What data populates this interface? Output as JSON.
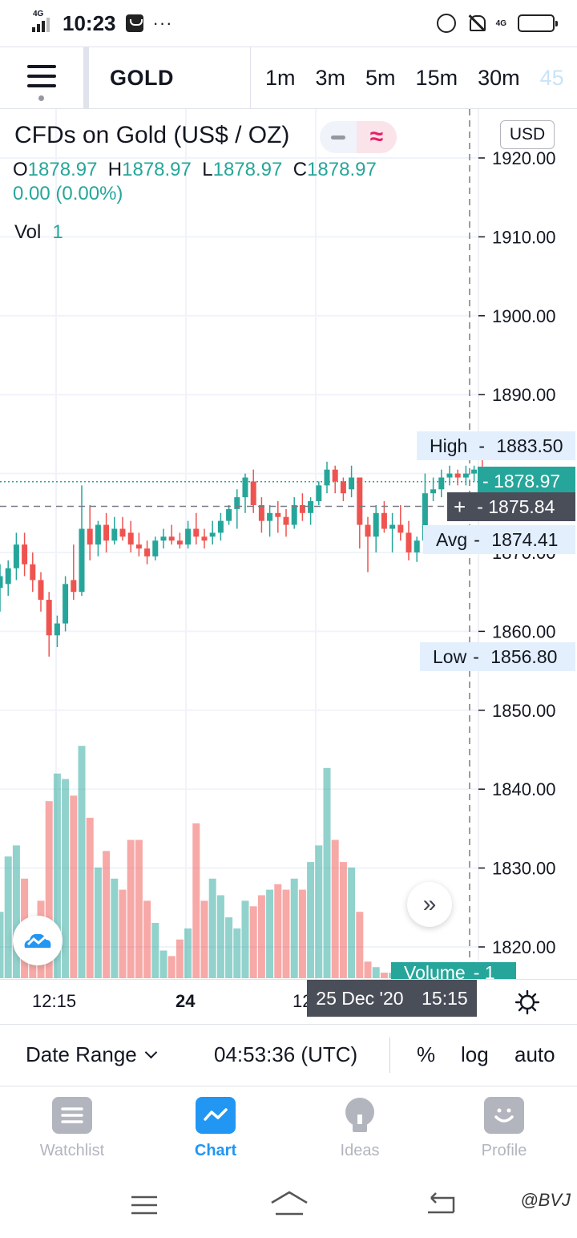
{
  "status_bar": {
    "time": "10:23",
    "network_left": "4G",
    "network_right": "4G",
    "more": "···"
  },
  "toolbar": {
    "symbol": "GOLD",
    "intervals": [
      {
        "label": "1m"
      },
      {
        "label": "3m"
      },
      {
        "label": "5m"
      },
      {
        "label": "15m"
      },
      {
        "label": "30m"
      },
      {
        "label": "45"
      }
    ]
  },
  "legend": {
    "title": "CFDs on Gold (US$ / OZ)",
    "open_key": "O",
    "open": "1878.97",
    "high_key": "H",
    "high": "1878.97",
    "low_key": "L",
    "low": "1878.97",
    "close_key": "C",
    "close": "1878.97",
    "change": "0.00 (0.00%)",
    "vol_label": "Vol",
    "vol_value": "1"
  },
  "currency": "USD",
  "price_axis": [
    "1920.00",
    "1910.00",
    "1900.00",
    "1890.00",
    "1870.00",
    "1860.00",
    "1850.00",
    "1840.00",
    "1830.00",
    "1820.00"
  ],
  "price_labels": {
    "high_label": "High",
    "high_value": "1883.50",
    "last_value": "1878.97",
    "crosshair_value": "1875.84",
    "avg_label": "Avg",
    "avg_value": "1874.41",
    "low_label": "Low",
    "low_value": "1856.80",
    "volume_label": "Volume",
    "volume_value": "1"
  },
  "time_axis": {
    "label_1": "12:15",
    "label_2": "24",
    "label_3": "12",
    "crosshair_date": "25 Dec '20",
    "crosshair_time": "15:15"
  },
  "controls": {
    "date_range": "Date Range",
    "clock": "04:53:36 (UTC)",
    "percent": "%",
    "log": "log",
    "auto": "auto"
  },
  "tabs": [
    {
      "label": "Watchlist"
    },
    {
      "label": "Chart"
    },
    {
      "label": "Ideas"
    },
    {
      "label": "Profile"
    }
  ],
  "watermark": "@BVJ",
  "colors": {
    "up": "#26a69a",
    "down": "#ef5350",
    "accent": "#2196f3",
    "badge_light": "#e3effd",
    "crosshair_badge": "#4a4e59"
  },
  "chart_data": {
    "type": "candlestick",
    "title": "CFDs on Gold (US$ / OZ)",
    "y_axis_range": [
      1816,
      1926
    ],
    "candles": [
      {
        "o": 1865.5,
        "h": 1868.5,
        "l": 1862.5,
        "c": 1867.0
      },
      {
        "o": 1866.0,
        "h": 1869.0,
        "l": 1864.5,
        "c": 1868.0
      },
      {
        "o": 1868.0,
        "h": 1872.5,
        "l": 1866.5,
        "c": 1871.0
      },
      {
        "o": 1871.0,
        "h": 1872.5,
        "l": 1867.0,
        "c": 1868.5
      },
      {
        "o": 1868.5,
        "h": 1870.0,
        "l": 1865.0,
        "c": 1866.5
      },
      {
        "o": 1866.5,
        "h": 1867.5,
        "l": 1862.5,
        "c": 1864.0
      },
      {
        "o": 1864.0,
        "h": 1865.0,
        "l": 1856.8,
        "c": 1859.5
      },
      {
        "o": 1859.5,
        "h": 1862.0,
        "l": 1858.0,
        "c": 1861.0
      },
      {
        "o": 1861.0,
        "h": 1867.0,
        "l": 1860.0,
        "c": 1866.0
      },
      {
        "o": 1866.5,
        "h": 1871.0,
        "l": 1864.0,
        "c": 1865.0
      },
      {
        "o": 1865.0,
        "h": 1878.5,
        "l": 1864.5,
        "c": 1873.0
      },
      {
        "o": 1873.0,
        "h": 1876.0,
        "l": 1869.0,
        "c": 1871.0
      },
      {
        "o": 1871.0,
        "h": 1874.0,
        "l": 1869.5,
        "c": 1873.5
      },
      {
        "o": 1873.5,
        "h": 1875.0,
        "l": 1870.0,
        "c": 1871.5
      },
      {
        "o": 1871.5,
        "h": 1874.5,
        "l": 1871.0,
        "c": 1873.0
      },
      {
        "o": 1873.0,
        "h": 1874.5,
        "l": 1871.5,
        "c": 1872.0
      },
      {
        "o": 1872.5,
        "h": 1874.0,
        "l": 1870.0,
        "c": 1871.0
      },
      {
        "o": 1871.0,
        "h": 1872.5,
        "l": 1869.5,
        "c": 1870.5
      },
      {
        "o": 1870.5,
        "h": 1871.5,
        "l": 1868.5,
        "c": 1869.5
      },
      {
        "o": 1869.5,
        "h": 1872.0,
        "l": 1869.0,
        "c": 1871.5
      },
      {
        "o": 1871.5,
        "h": 1873.0,
        "l": 1870.5,
        "c": 1872.0
      },
      {
        "o": 1872.0,
        "h": 1873.5,
        "l": 1871.0,
        "c": 1871.5
      },
      {
        "o": 1871.5,
        "h": 1872.5,
        "l": 1870.5,
        "c": 1871.0
      },
      {
        "o": 1871.0,
        "h": 1874.0,
        "l": 1870.5,
        "c": 1873.0
      },
      {
        "o": 1873.0,
        "h": 1875.0,
        "l": 1871.0,
        "c": 1872.0
      },
      {
        "o": 1872.0,
        "h": 1873.0,
        "l": 1870.5,
        "c": 1871.5
      },
      {
        "o": 1872.0,
        "h": 1874.0,
        "l": 1871.0,
        "c": 1872.5
      },
      {
        "o": 1872.5,
        "h": 1875.0,
        "l": 1871.5,
        "c": 1874.0
      },
      {
        "o": 1874.0,
        "h": 1876.0,
        "l": 1873.5,
        "c": 1875.5
      },
      {
        "o": 1875.5,
        "h": 1878.0,
        "l": 1873.0,
        "c": 1877.0
      },
      {
        "o": 1877.0,
        "h": 1880.0,
        "l": 1875.0,
        "c": 1879.5
      },
      {
        "o": 1879.0,
        "h": 1880.5,
        "l": 1875.0,
        "c": 1876.0
      },
      {
        "o": 1876.0,
        "h": 1877.0,
        "l": 1872.5,
        "c": 1874.0
      },
      {
        "o": 1874.0,
        "h": 1876.0,
        "l": 1872.0,
        "c": 1875.0
      },
      {
        "o": 1875.0,
        "h": 1876.5,
        "l": 1872.5,
        "c": 1874.5
      },
      {
        "o": 1874.5,
        "h": 1875.5,
        "l": 1872.0,
        "c": 1873.5
      },
      {
        "o": 1873.5,
        "h": 1877.0,
        "l": 1873.0,
        "c": 1876.0
      },
      {
        "o": 1876.0,
        "h": 1877.5,
        "l": 1874.0,
        "c": 1875.0
      },
      {
        "o": 1875.0,
        "h": 1877.0,
        "l": 1873.5,
        "c": 1876.5
      },
      {
        "o": 1876.5,
        "h": 1879.0,
        "l": 1876.0,
        "c": 1878.5
      },
      {
        "o": 1878.5,
        "h": 1881.5,
        "l": 1877.5,
        "c": 1880.5
      },
      {
        "o": 1880.5,
        "h": 1881.0,
        "l": 1877.5,
        "c": 1879.0
      },
      {
        "o": 1879.0,
        "h": 1879.5,
        "l": 1876.5,
        "c": 1877.5
      },
      {
        "o": 1878.0,
        "h": 1881.0,
        "l": 1877.0,
        "c": 1879.5
      },
      {
        "o": 1879.5,
        "h": 1879.5,
        "l": 1870.5,
        "c": 1873.5
      },
      {
        "o": 1873.5,
        "h": 1874.5,
        "l": 1867.5,
        "c": 1872.0
      },
      {
        "o": 1872.0,
        "h": 1876.0,
        "l": 1870.0,
        "c": 1875.0
      },
      {
        "o": 1875.0,
        "h": 1876.5,
        "l": 1872.5,
        "c": 1873.0
      },
      {
        "o": 1873.0,
        "h": 1875.0,
        "l": 1870.0,
        "c": 1873.5
      },
      {
        "o": 1873.5,
        "h": 1876.0,
        "l": 1871.5,
        "c": 1872.5
      },
      {
        "o": 1872.5,
        "h": 1874.0,
        "l": 1869.0,
        "c": 1870.0
      },
      {
        "o": 1870.0,
        "h": 1872.0,
        "l": 1868.8,
        "c": 1871.5
      },
      {
        "o": 1871.5,
        "h": 1880.0,
        "l": 1870.5,
        "c": 1877.5
      },
      {
        "o": 1877.5,
        "h": 1879.5,
        "l": 1876.5,
        "c": 1878.0
      },
      {
        "o": 1878.0,
        "h": 1880.5,
        "l": 1877.0,
        "c": 1879.5
      },
      {
        "o": 1879.5,
        "h": 1881.0,
        "l": 1878.5,
        "c": 1880.0
      },
      {
        "o": 1880.0,
        "h": 1880.5,
        "l": 1878.5,
        "c": 1879.5
      },
      {
        "o": 1879.5,
        "h": 1881.0,
        "l": 1878.5,
        "c": 1880.0
      },
      {
        "o": 1880.0,
        "h": 1881.0,
        "l": 1879.0,
        "c": 1880.5
      },
      {
        "o": 1880.5,
        "h": 1883.5,
        "l": 1878.0,
        "c": 1878.97
      },
      {
        "o": 1878.97,
        "h": 1878.97,
        "l": 1878.97,
        "c": 1878.97
      }
    ],
    "volume_relative": [
      0.12,
      0.22,
      0.24,
      0.18,
      0.1,
      0.14,
      0.32,
      0.37,
      0.36,
      0.33,
      0.42,
      0.29,
      0.2,
      0.23,
      0.18,
      0.16,
      0.25,
      0.25,
      0.14,
      0.1,
      0.05,
      0.04,
      0.07,
      0.09,
      0.28,
      0.14,
      0.18,
      0.15,
      0.11,
      0.09,
      0.14,
      0.13,
      0.15,
      0.16,
      0.17,
      0.16,
      0.18,
      0.16,
      0.21,
      0.24,
      0.38,
      0.25,
      0.21,
      0.2,
      0.12,
      0.03,
      0.02,
      0.01,
      0.01,
      0.01,
      0.01,
      0.01,
      0.01,
      0.01,
      0.01,
      0.01,
      0.01,
      0.01,
      0.01,
      0.01,
      0.01
    ]
  }
}
